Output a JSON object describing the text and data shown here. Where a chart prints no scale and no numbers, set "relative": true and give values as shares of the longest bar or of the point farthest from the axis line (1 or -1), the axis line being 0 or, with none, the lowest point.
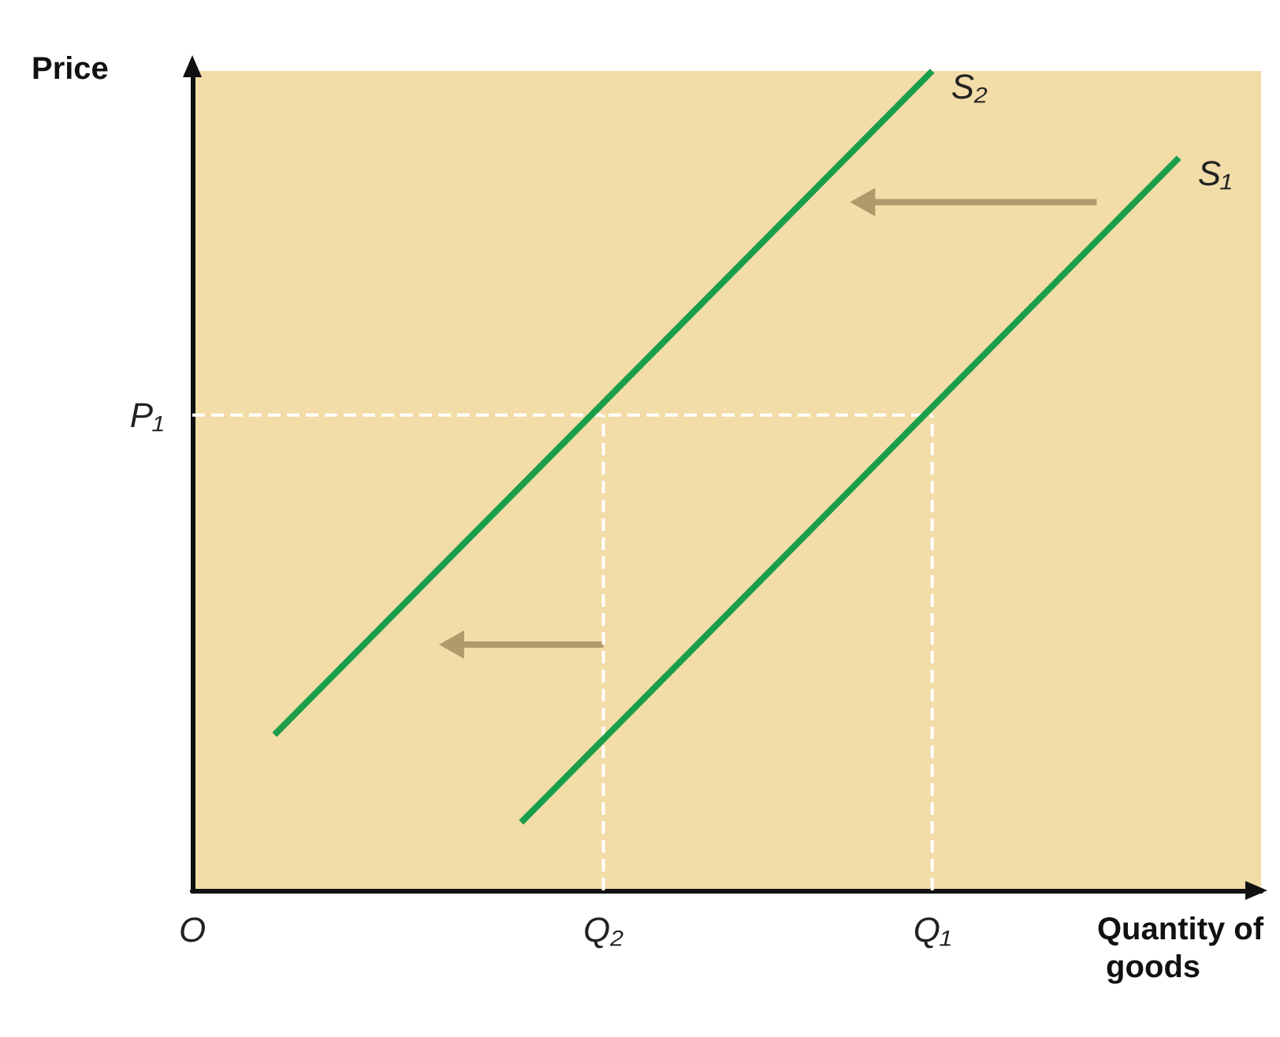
{
  "chart_data": {
    "type": "line",
    "relative": true,
    "xlabel": "Quantity of goods",
    "ylabel": "Price",
    "categories": [
      "O",
      null,
      null,
      null,
      null,
      "Q₂",
      null,
      null,
      null,
      "Q₁",
      null,
      null,
      null,
      null
    ],
    "annotations": [
      {
        "text": "P₁",
        "x": "O",
        "y": 0.58
      }
    ],
    "grid": false,
    "legend": false,
    "marker": "none",
    "series": [
      {
        "name": "S₂",
        "color": "#1a9e4b",
        "values": [
          null,
          0.19,
          null,
          null,
          null,
          null,
          null,
          null,
          null,
          1,
          null,
          null,
          null,
          null
        ]
      },
      {
        "name": "S₁",
        "color": "#1a9e4b",
        "values": [
          null,
          null,
          null,
          null,
          0.083,
          null,
          null,
          null,
          null,
          null,
          null,
          null,
          0.894,
          null
        ]
      },
      {
        "color": "#ffffff",
        "line_style": "dashed",
        "values": [
          0.58,
          null,
          null,
          null,
          null,
          null,
          null,
          null,
          null,
          0.58,
          null,
          null,
          null,
          null
        ]
      },
      {
        "color": "#ffffff",
        "line_style": "dashed",
        "x": [
          "Q₂",
          "Q₂"
        ],
        "values": [
          0,
          0.58
        ]
      },
      {
        "color": "#ffffff",
        "line_style": "dashed",
        "x": [
          "Q₁",
          "Q₁"
        ],
        "values": [
          0,
          0.58
        ]
      }
    ]
  }
}
